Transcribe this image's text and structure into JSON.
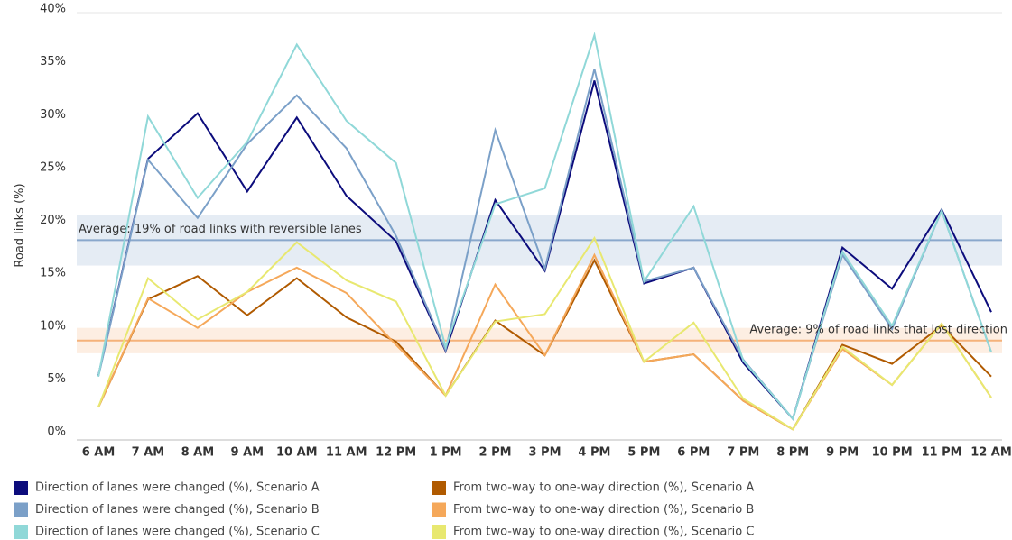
{
  "chart_data": {
    "type": "line",
    "y_label": "Road links (%)",
    "categories": [
      "6 AM",
      "7 AM",
      "8 AM",
      "9 AM",
      "10 AM",
      "11 AM",
      "12 PM",
      "1 PM",
      "2 PM",
      "3 PM",
      "4 PM",
      "5 PM",
      "6 PM",
      "7 PM",
      "8 PM",
      "9 PM",
      "10 PM",
      "11 PM",
      "12 AM"
    ],
    "series": [
      {
        "name": "Direction of lanes were changed (%), Scenario A",
        "color": "#0c0c7c",
        "values": [
          6.1,
          26.6,
          30.9,
          23.5,
          30.5,
          23.1,
          18.8,
          8.4,
          22.7,
          16.0,
          34.0,
          14.8,
          16.3,
          7.3,
          2.0,
          18.2,
          14.3,
          21.8,
          12.1
        ]
      },
      {
        "name": "Direction of lanes were changed (%), Scenario B",
        "color": "#7ba0c8",
        "values": [
          6.0,
          26.5,
          21.0,
          28.0,
          32.6,
          27.6,
          19.3,
          8.5,
          29.3,
          16.2,
          35.1,
          15.0,
          16.3,
          7.6,
          2.0,
          17.5,
          10.5,
          21.7,
          8.3
        ]
      },
      {
        "name": "Direction of lanes were changed (%), Scenario C",
        "color": "#90d8d8",
        "values": [
          6.0,
          30.6,
          22.9,
          28.2,
          37.4,
          30.2,
          26.2,
          8.8,
          22.3,
          23.8,
          38.3,
          15.0,
          22.1,
          7.5,
          2.0,
          17.8,
          10.8,
          21.7,
          8.3
        ]
      },
      {
        "name": "From two-way to one-way direction  (%), Scenario A",
        "color": "#b05a00",
        "values": [
          3.1,
          13.3,
          15.5,
          11.8,
          15.3,
          11.6,
          9.3,
          4.2,
          11.3,
          8.0,
          17.0,
          7.4,
          8.1,
          3.7,
          1.0,
          9.0,
          7.2,
          10.8,
          6.0
        ]
      },
      {
        "name": "From two-way to one-way direction  (%), Scenario B",
        "color": "#f5a85a",
        "values": [
          3.1,
          13.4,
          10.6,
          14.0,
          16.3,
          13.9,
          9.0,
          4.2,
          14.7,
          8.0,
          17.5,
          7.4,
          8.1,
          3.7,
          1.0,
          8.6,
          5.2,
          11.0,
          4.0
        ]
      },
      {
        "name": "From two-way to one-way direction  (%), Scenario C",
        "color": "#e8e870",
        "values": [
          3.1,
          15.3,
          11.4,
          14.0,
          18.7,
          15.1,
          13.1,
          4.2,
          11.2,
          11.9,
          19.1,
          7.4,
          11.1,
          3.9,
          1.0,
          8.8,
          5.2,
          11.0,
          4.0
        ]
      }
    ],
    "annotations": [
      {
        "text": "Average: 19% of road links with reversible lanes",
        "value": 18.9,
        "band": [
          16.5,
          21.3
        ],
        "color": "#8aa8cc"
      },
      {
        "text": "Average: 9% of road links that lost direction",
        "value": 9.4,
        "band": [
          8.2,
          10.6
        ],
        "color": "#f5b27a"
      }
    ],
    "ylim": [
      0,
      40
    ],
    "yticks": [
      {
        "value": 0,
        "label": "0%"
      },
      {
        "value": 5,
        "label": "5%"
      },
      {
        "value": 10,
        "label": "10%"
      },
      {
        "value": 15,
        "label": "15%"
      },
      {
        "value": 20,
        "label": "20%"
      },
      {
        "value": 25,
        "label": "25%"
      },
      {
        "value": 30,
        "label": "30%"
      },
      {
        "value": 35,
        "label": "35%"
      },
      {
        "value": 40,
        "label": "40%"
      }
    ]
  }
}
